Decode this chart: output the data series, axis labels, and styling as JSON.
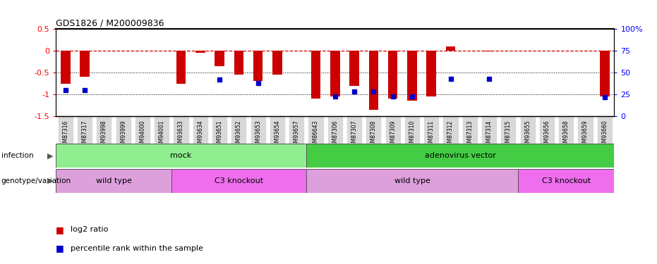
{
  "title": "GDS1826 / M200009836",
  "samples": [
    "GSM87316",
    "GSM87317",
    "GSM93998",
    "GSM93999",
    "GSM94000",
    "GSM94001",
    "GSM93633",
    "GSM93634",
    "GSM93651",
    "GSM93652",
    "GSM93653",
    "GSM93654",
    "GSM93657",
    "GSM86643",
    "GSM87306",
    "GSM87307",
    "GSM87308",
    "GSM87309",
    "GSM87310",
    "GSM87311",
    "GSM87312",
    "GSM87313",
    "GSM87314",
    "GSM87315",
    "GSM93655",
    "GSM93656",
    "GSM93658",
    "GSM93659",
    "GSM93660"
  ],
  "log2_ratio": [
    -0.75,
    -0.6,
    0.0,
    0.0,
    0.0,
    0.0,
    -0.75,
    -0.05,
    -0.35,
    -0.55,
    -0.7,
    -0.55,
    0.0,
    -1.1,
    -1.05,
    -0.8,
    -1.35,
    -1.1,
    -1.15,
    -1.05,
    0.1,
    0.0,
    -0.02,
    0.0,
    0.0,
    0.0,
    0.0,
    0.0,
    -1.05
  ],
  "percentile": [
    30,
    30,
    null,
    null,
    null,
    null,
    null,
    null,
    42,
    null,
    38,
    null,
    null,
    null,
    23,
    28,
    28,
    23,
    23,
    null,
    43,
    null,
    43,
    null,
    null,
    null,
    null,
    null,
    22
  ],
  "infection_groups": [
    {
      "label": "mock",
      "start": 0,
      "end": 12,
      "color": "#90EE90"
    },
    {
      "label": "adenovirus vector",
      "start": 13,
      "end": 28,
      "color": "#44CC44"
    }
  ],
  "genotype_groups": [
    {
      "label": "wild type",
      "start": 0,
      "end": 5,
      "color": "#DDA0DD"
    },
    {
      "label": "C3 knockout",
      "start": 6,
      "end": 12,
      "color": "#EE6EEE"
    },
    {
      "label": "wild type",
      "start": 13,
      "end": 23,
      "color": "#DDA0DD"
    },
    {
      "label": "C3 knockout",
      "start": 24,
      "end": 28,
      "color": "#EE6EEE"
    }
  ],
  "ylim_left": [
    -1.5,
    0.5
  ],
  "ylim_right": [
    0,
    100
  ],
  "bar_color": "#CC0000",
  "dot_color": "#0000CC",
  "ref_line_color": "#CC0000",
  "dotted_line_color": "#000000",
  "background_color": "#ffffff",
  "xlabel_bg": "#D8D8D8"
}
